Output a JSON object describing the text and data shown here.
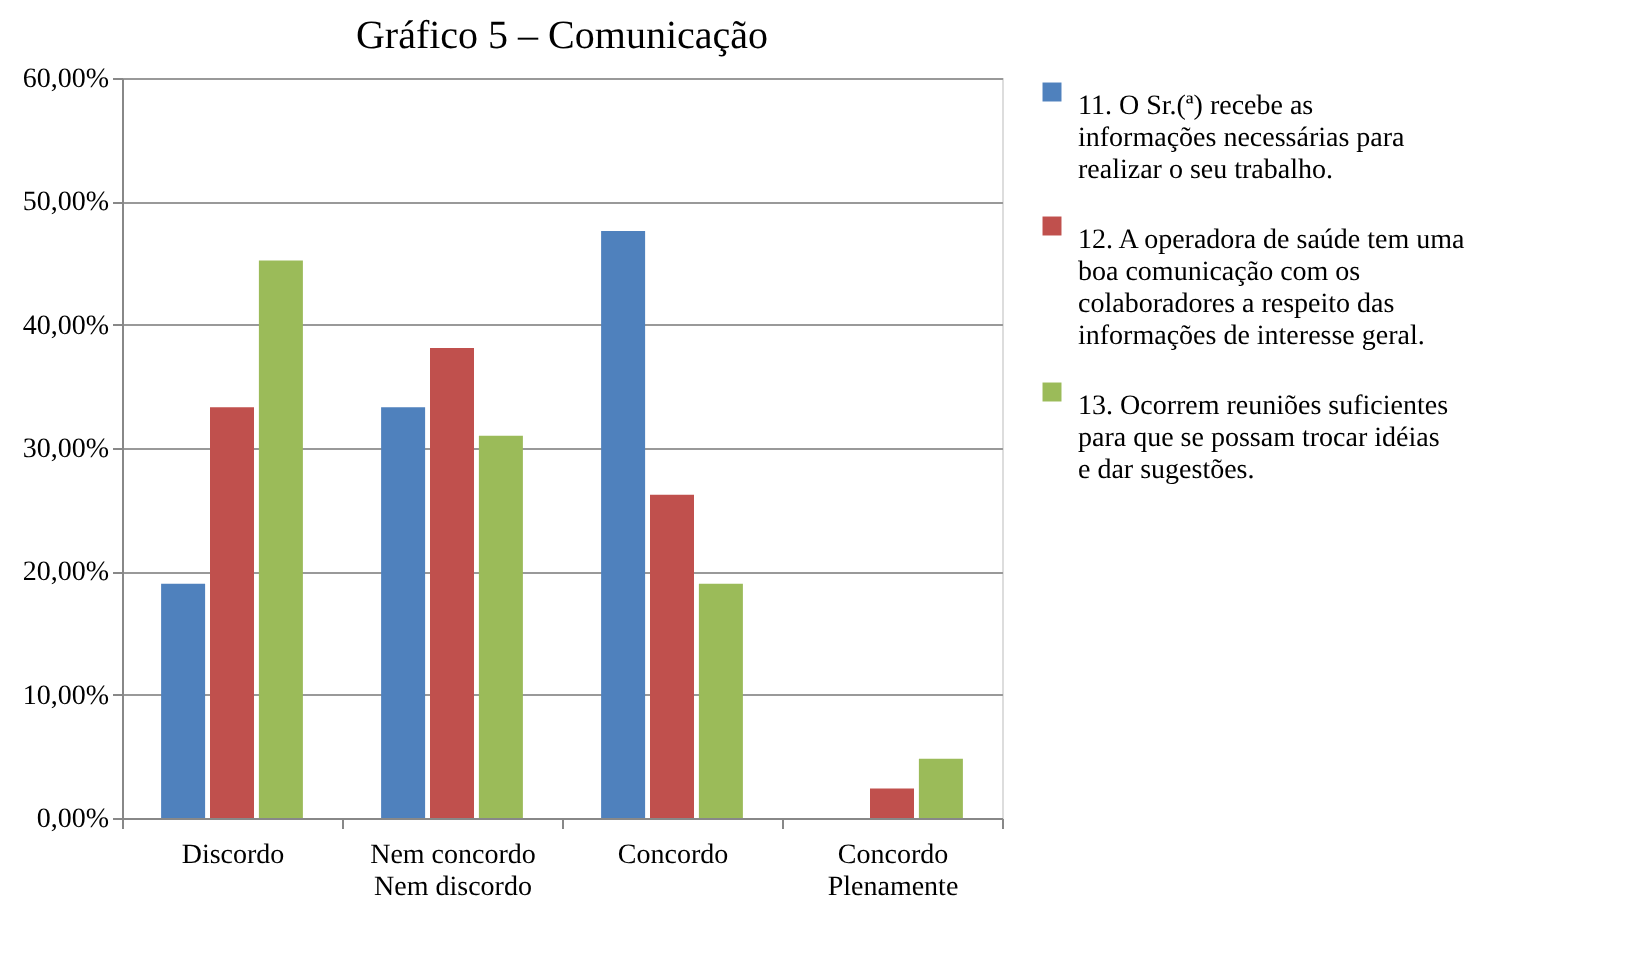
{
  "chart_data": {
    "type": "bar",
    "title": "Gráfico 5 – Comunicação",
    "categories": [
      "Discordo",
      "Nem concordo Nem discordo",
      "Concordo",
      "Concordo Plenamente"
    ],
    "series": [
      {
        "name": "11. O Sr.(ª) recebe as informações necessárias para realizar o seu trabalho.",
        "color": "#4f81bd",
        "values": [
          19,
          33.3,
          47.6,
          0
        ]
      },
      {
        "name": "12. A operadora de saúde tem uma boa comunicação com os colaboradores a respeito das informações de interesse geral.",
        "color": "#c0504d",
        "values": [
          33.3,
          38.1,
          26.2,
          2.4
        ]
      },
      {
        "name": "13. Ocorrem reuniões suficientes para que se possam trocar idéias e dar sugestões.",
        "color": "#9bbb59",
        "values": [
          45.2,
          31,
          19,
          4.8
        ]
      }
    ],
    "ylim": [
      0,
      60
    ],
    "yticks": [
      {
        "value": 0,
        "label": "0,00%"
      },
      {
        "value": 10,
        "label": "10,00%"
      },
      {
        "value": 20,
        "label": "20,00%"
      },
      {
        "value": 30,
        "label": "30,00%"
      },
      {
        "value": 40,
        "label": "40,00%"
      },
      {
        "value": 50,
        "label": "50,00%"
      },
      {
        "value": 60,
        "label": "60,00%"
      }
    ],
    "grid": "y",
    "legend": "right"
  }
}
